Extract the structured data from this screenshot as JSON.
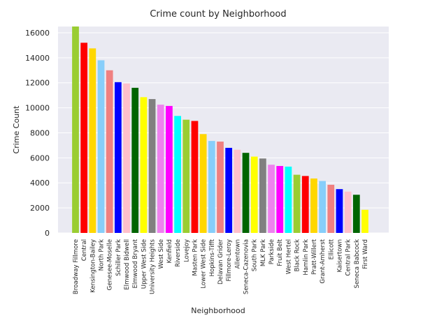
{
  "chart_data": {
    "type": "bar",
    "title": "Crime count by Neighborhood",
    "xlabel": "Neighborhood",
    "ylabel": "Crime Count",
    "ylim": [
      0,
      16500
    ],
    "yticks": [
      0,
      2000,
      4000,
      6000,
      8000,
      10000,
      12000,
      14000,
      16000
    ],
    "grid": true,
    "legend": "none",
    "background": "#eaeaf2",
    "categories": [
      "Broadway Fillmore",
      "Central",
      "Kensington-Bailey",
      "North Park",
      "Genesee-Moselle",
      "Schiller Park",
      "Elmwood Bidwell",
      "Elmwood Bryant",
      "Upper West Side",
      "University Heights",
      "West Side",
      "Kenfield",
      "Riverside",
      "Lovejoy",
      "Masten Park",
      "Lower West Side",
      "Hopkins-Tifft",
      "Delavan Grider",
      "Fillmore-Leroy",
      "Allentown",
      "Seneca-Cazenovia",
      "South Park",
      "MLK Park",
      "Parkside",
      "Fruit Belt",
      "West Hertel",
      "Black Rock",
      "Hamlin Park",
      "Pratt-Willert",
      "Grant-Amherst",
      "Ellicott",
      "Kaisertown",
      "Central Park",
      "Seneca Babcock",
      "First Ward"
    ],
    "values": [
      16500,
      15200,
      14750,
      13800,
      13000,
      12050,
      11950,
      11600,
      10850,
      10700,
      10250,
      10150,
      9350,
      9050,
      8950,
      7900,
      7350,
      7300,
      6800,
      6650,
      6400,
      6100,
      5950,
      5450,
      5350,
      5300,
      4650,
      4550,
      4350,
      4150,
      3850,
      3500,
      3300,
      3050,
      1850
    ],
    "colors": [
      "#9acd32",
      "#ff0000",
      "#ffd700",
      "#87cefa",
      "#f08080",
      "#0000ff",
      "#ffc0cb",
      "#006400",
      "#ffff00",
      "#808080",
      "#ee82ee",
      "#ff00ff",
      "#00ffff",
      "#9acd32",
      "#ff0000",
      "#ffd700",
      "#87cefa",
      "#f08080",
      "#0000ff",
      "#ffc0cb",
      "#006400",
      "#ffff00",
      "#808080",
      "#ee82ee",
      "#ff00ff",
      "#00ffff",
      "#9acd32",
      "#ff0000",
      "#ffd700",
      "#87cefa",
      "#f08080",
      "#0000ff",
      "#ffc0cb",
      "#006400",
      "#ffff00"
    ]
  }
}
